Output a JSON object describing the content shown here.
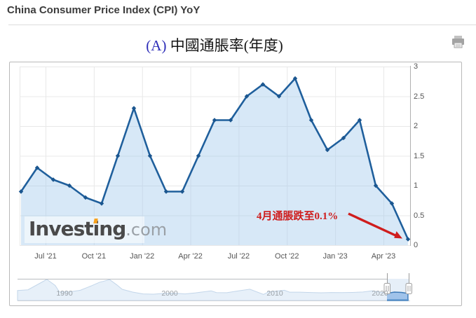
{
  "page": {
    "title": "China Consumer Price Index (CPI) YoY"
  },
  "chart": {
    "title_prefix": "(A)",
    "title_text": "中國通脹率(年度)",
    "annotation": {
      "text": "4月通脹跌至0.1%"
    },
    "watermark": {
      "brand_pre": "Invest",
      "brand_i": "i",
      "brand_post": "ng",
      "suffix": ".com"
    }
  },
  "chart_data": {
    "type": "area",
    "title": "(A) 中國通脹率(年度)",
    "series_name": "China CPI YoY (%)",
    "x": [
      "Apr '21",
      "May '21",
      "Jun '21",
      "Jul '21",
      "Aug '21",
      "Sep '21",
      "Oct '21",
      "Nov '21",
      "Dec '21",
      "Jan '22",
      "Feb '22",
      "Mar '22",
      "Apr '22",
      "May '22",
      "Jun '22",
      "Jul '22",
      "Aug '22",
      "Sep '22",
      "Oct '22",
      "Nov '22",
      "Dec '22",
      "Jan '23",
      "Feb '23",
      "Mar '23",
      "Apr '23"
    ],
    "values": [
      0.9,
      1.3,
      1.1,
      1.0,
      0.8,
      0.7,
      1.5,
      2.3,
      1.5,
      0.9,
      0.9,
      1.5,
      2.1,
      2.1,
      2.5,
      2.7,
      2.5,
      2.8,
      2.1,
      1.6,
      1.8,
      2.1,
      1.0,
      0.7,
      0.1
    ],
    "x_axis_ticks": [
      "Jul '21",
      "Oct '21",
      "Jan '22",
      "Apr '22",
      "Jul '22",
      "Oct '22",
      "Jan '23",
      "Apr '23"
    ],
    "y_axis_ticks": [
      "0",
      "0.5",
      "1",
      "1.5",
      "2",
      "2.5",
      "3"
    ],
    "ylim": [
      0,
      3
    ],
    "grid": true,
    "legend": "none",
    "annotation": {
      "text": "4月通脹跌至0.1%",
      "points_to": {
        "x": "Apr '23",
        "value": 0.1
      }
    },
    "navigator": {
      "x_axis_ticks": [
        "1990",
        "2000",
        "2010",
        "2020"
      ],
      "years": [
        1986,
        1987,
        1988,
        1988.8,
        1989.6,
        1990,
        1991,
        1992,
        1993,
        1993.8,
        1994.8,
        1995.5,
        1996,
        1997,
        1998,
        1999,
        2000,
        2001,
        2002,
        2003,
        2004.5,
        2005,
        2006,
        2007,
        2008.2,
        2009.5,
        2010,
        2011.5,
        2012,
        2013,
        2014,
        2015,
        2016,
        2017,
        2018,
        2019,
        2019.9,
        2020.7,
        2021.5,
        2022,
        2022.7,
        2023.3
      ],
      "values": [
        6,
        7.3,
        18.8,
        27.9,
        16,
        3.1,
        3.4,
        6.4,
        14.7,
        22,
        27.5,
        17,
        8.3,
        2.8,
        -0.8,
        -1.4,
        0.4,
        0.7,
        -0.8,
        1.2,
        5.3,
        1.8,
        1.5,
        4.8,
        8.5,
        -1.8,
        3.3,
        6.4,
        2.6,
        2.6,
        2,
        1.4,
        2,
        1.6,
        2.1,
        2.9,
        5.4,
        2.4,
        1,
        2.8,
        2.1,
        0.1
      ],
      "selected_range": "2021–2023"
    },
    "colors": {
      "line": "#1f5f9c",
      "fill": "#dce9f7",
      "annotation": "#cf1d1d",
      "title_prefix": "#2d2db8",
      "grid": "#e8e8e8"
    }
  }
}
